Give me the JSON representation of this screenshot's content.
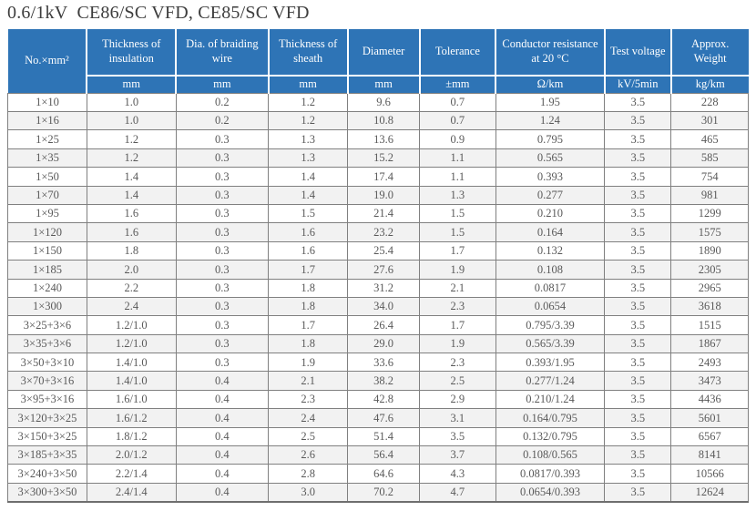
{
  "title": "0.6/1kV  CE86/SC VFD, CE85/SC VFD",
  "accent_colors": {
    "header_background": "#2e74b6",
    "header_text": "#ffffff",
    "alt_row_background": "#f2f2f2",
    "body_text": "#595959",
    "grid_line": "#808080"
  },
  "table": {
    "columns": [
      {
        "label": "No.×mm²",
        "unit": ""
      },
      {
        "label": "Thickness of insulation",
        "unit": "mm"
      },
      {
        "label": "Dia. of braiding wire",
        "unit": "mm"
      },
      {
        "label": "Thickness of sheath",
        "unit": "mm"
      },
      {
        "label": "Diameter",
        "unit": "mm"
      },
      {
        "label": "Tolerance",
        "unit": "±mm"
      },
      {
        "label": "Conductor resistance at 20 °C",
        "unit": "Ω/km"
      },
      {
        "label": "Test voltage",
        "unit": "kV/5min"
      },
      {
        "label": "Approx. Weight",
        "unit": "kg/km"
      }
    ],
    "rows": [
      [
        "1×10",
        "1.0",
        "0.2",
        "1.2",
        "9.6",
        "0.7",
        "1.95",
        "3.5",
        "228"
      ],
      [
        "1×16",
        "1.0",
        "0.2",
        "1.2",
        "10.8",
        "0.7",
        "1.24",
        "3.5",
        "301"
      ],
      [
        "1×25",
        "1.2",
        "0.3",
        "1.3",
        "13.6",
        "0.9",
        "0.795",
        "3.5",
        "465"
      ],
      [
        "1×35",
        "1.2",
        "0.3",
        "1.3",
        "15.2",
        "1.1",
        "0.565",
        "3.5",
        "585"
      ],
      [
        "1×50",
        "1.4",
        "0.3",
        "1.4",
        "17.4",
        "1.1",
        "0.393",
        "3.5",
        "754"
      ],
      [
        "1×70",
        "1.4",
        "0.3",
        "1.4",
        "19.0",
        "1.3",
        "0.277",
        "3.5",
        "981"
      ],
      [
        "1×95",
        "1.6",
        "0.3",
        "1.5",
        "21.4",
        "1.5",
        "0.210",
        "3.5",
        "1299"
      ],
      [
        "1×120",
        "1.6",
        "0.3",
        "1.6",
        "23.2",
        "1.5",
        "0.164",
        "3.5",
        "1575"
      ],
      [
        "1×150",
        "1.8",
        "0.3",
        "1.6",
        "25.4",
        "1.7",
        "0.132",
        "3.5",
        "1890"
      ],
      [
        "1×185",
        "2.0",
        "0.3",
        "1.7",
        "27.6",
        "1.9",
        "0.108",
        "3.5",
        "2305"
      ],
      [
        "1×240",
        "2.2",
        "0.3",
        "1.8",
        "31.2",
        "2.1",
        "0.0817",
        "3.5",
        "2965"
      ],
      [
        "1×300",
        "2.4",
        "0.3",
        "1.8",
        "34.0",
        "2.3",
        "0.0654",
        "3.5",
        "3618"
      ],
      [
        "3×25+3×6",
        "1.2/1.0",
        "0.3",
        "1.7",
        "26.4",
        "1.7",
        "0.795/3.39",
        "3.5",
        "1515"
      ],
      [
        "3×35+3×6",
        "1.2/1.0",
        "0.3",
        "1.8",
        "29.0",
        "1.9",
        "0.565/3.39",
        "3.5",
        "1867"
      ],
      [
        "3×50+3×10",
        "1.4/1.0",
        "0.3",
        "1.9",
        "33.6",
        "2.3",
        "0.393/1.95",
        "3.5",
        "2493"
      ],
      [
        "3×70+3×16",
        "1.4/1.0",
        "0.4",
        "2.1",
        "38.2",
        "2.5",
        "0.277/1.24",
        "3.5",
        "3473"
      ],
      [
        "3×95+3×16",
        "1.6/1.0",
        "0.4",
        "2.3",
        "42.8",
        "2.9",
        "0.210/1.24",
        "3.5",
        "4436"
      ],
      [
        "3×120+3×25",
        "1.6/1.2",
        "0.4",
        "2.4",
        "47.6",
        "3.1",
        "0.164/0.795",
        "3.5",
        "5601"
      ],
      [
        "3×150+3×25",
        "1.8/1.2",
        "0.4",
        "2.5",
        "51.4",
        "3.5",
        "0.132/0.795",
        "3.5",
        "6567"
      ],
      [
        "3×185+3×35",
        "2.0/1.2",
        "0.4",
        "2.6",
        "56.4",
        "3.7",
        "0.108/0.565",
        "3.5",
        "8141"
      ],
      [
        "3×240+3×50",
        "2.2/1.4",
        "0.4",
        "2.8",
        "64.6",
        "4.3",
        "0.0817/0.393",
        "3.5",
        "10566"
      ],
      [
        "3×300+3×50",
        "2.4/1.4",
        "0.4",
        "3.0",
        "70.2",
        "4.7",
        "0.0654/0.393",
        "3.5",
        "12624"
      ]
    ]
  }
}
